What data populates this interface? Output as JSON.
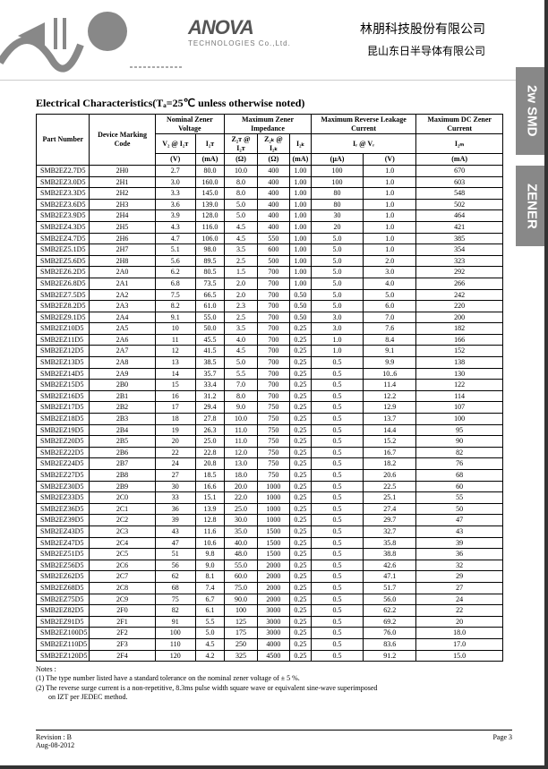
{
  "header": {
    "logo_main": "ANOVA",
    "logo_sub": "TECHNOLOGIES Co.,Ltd.",
    "cjk1": "林朋科技股份有限公司",
    "cjk2": "昆山东日半导体有限公司"
  },
  "side_tabs": [
    "2w SMD",
    "ZENER"
  ],
  "section_title": "Electrical Characteristics(Tₐ=25℃ unless otherwise noted)",
  "columns": {
    "part_number": "Part Number",
    "marking": "Device Marking Code",
    "nom_group": "Nominal Zener Voltage",
    "imp_group": "Maximum Zener Impedance",
    "leak_group": "Maximum Reverse Leakage Current",
    "dc_group": "Maximum DC Zener Current",
    "vz": "V₂ @ I₂ᴛ",
    "izt": "I₂ᴛ",
    "zzt": "Z₂ᴛ @ I₂ᴛ",
    "zzk": "Z₂ₖ @ I₂ₖ",
    "izk": "I₂ₖ",
    "ir": "Iᵣ @ Vᵣ",
    "vr": "",
    "izm": "I₂ₘ",
    "units": [
      "(V)",
      "(mA)",
      "(Ω)",
      "(Ω)",
      "(mA)",
      "(µA)",
      "(V)",
      "(mA)"
    ]
  },
  "rows": [
    {
      "pn": "SMB2EZ2.7D5",
      "mc": "2H0",
      "vz": "2.7",
      "izt": "80.0",
      "zzt": "10.0",
      "zzk": "400",
      "izk": "1.00",
      "ir": "100",
      "vr": "1.0",
      "izm": "670"
    },
    {
      "pn": "SMB2EZ3.0D5",
      "mc": "2H1",
      "vz": "3.0",
      "izt": "160.0",
      "zzt": "8.0",
      "zzk": "400",
      "izk": "1.00",
      "ir": "100",
      "vr": "1.0",
      "izm": "603"
    },
    {
      "pn": "SMB2EZ3.3D5",
      "mc": "2H2",
      "vz": "3.3",
      "izt": "145.0",
      "zzt": "8.0",
      "zzk": "400",
      "izk": "1.00",
      "ir": "80",
      "vr": "1.0",
      "izm": "548"
    },
    {
      "pn": "SMB2EZ3.6D5",
      "mc": "2H3",
      "vz": "3.6",
      "izt": "139.0",
      "zzt": "5.0",
      "zzk": "400",
      "izk": "1.00",
      "ir": "80",
      "vr": "1.0",
      "izm": "502"
    },
    {
      "pn": "SMB2EZ3.9D5",
      "mc": "2H4",
      "vz": "3.9",
      "izt": "128.0",
      "zzt": "5.0",
      "zzk": "400",
      "izk": "1.00",
      "ir": "30",
      "vr": "1.0",
      "izm": "464"
    },
    {
      "pn": "SMB2EZ4.3D5",
      "mc": "2H5",
      "vz": "4.3",
      "izt": "116.0",
      "zzt": "4.5",
      "zzk": "400",
      "izk": "1.00",
      "ir": "20",
      "vr": "1.0",
      "izm": "421"
    },
    {
      "pn": "SMB2EZ4.7D5",
      "mc": "2H6",
      "vz": "4.7",
      "izt": "106.0",
      "zzt": "4.5",
      "zzk": "550",
      "izk": "1.00",
      "ir": "5.0",
      "vr": "1.0",
      "izm": "385"
    },
    {
      "pn": "SMB2EZ5.1D5",
      "mc": "2H7",
      "vz": "5.1",
      "izt": "98.0",
      "zzt": "3.5",
      "zzk": "600",
      "izk": "1.00",
      "ir": "5.0",
      "vr": "1.0",
      "izm": "354"
    },
    {
      "pn": "SMB2EZ5.6D5",
      "mc": "2H8",
      "vz": "5.6",
      "izt": "89.5",
      "zzt": "2.5",
      "zzk": "500",
      "izk": "1.00",
      "ir": "5.0",
      "vr": "2.0",
      "izm": "323"
    },
    {
      "pn": "SMB2EZ6.2D5",
      "mc": "2A0",
      "vz": "6.2",
      "izt": "80.5",
      "zzt": "1.5",
      "zzk": "700",
      "izk": "1.00",
      "ir": "5.0",
      "vr": "3.0",
      "izm": "292"
    },
    {
      "pn": "SMB2EZ6.8D5",
      "mc": "2A1",
      "vz": "6.8",
      "izt": "73.5",
      "zzt": "2.0",
      "zzk": "700",
      "izk": "1.00",
      "ir": "5.0",
      "vr": "4.0",
      "izm": "266"
    },
    {
      "pn": "SMB2EZ7.5D5",
      "mc": "2A2",
      "vz": "7.5",
      "izt": "66.5",
      "zzt": "2.0",
      "zzk": "700",
      "izk": "0.50",
      "ir": "5.0",
      "vr": "5.0",
      "izm": "242"
    },
    {
      "pn": "SMB2EZ8.2D5",
      "mc": "2A3",
      "vz": "8.2",
      "izt": "61.0",
      "zzt": "2.3",
      "zzk": "700",
      "izk": "0.50",
      "ir": "5.0",
      "vr": "6.0",
      "izm": "220"
    },
    {
      "pn": "SMB2EZ9.1D5",
      "mc": "2A4",
      "vz": "9.1",
      "izt": "55.0",
      "zzt": "2.5",
      "zzk": "700",
      "izk": "0.50",
      "ir": "3.0",
      "vr": "7.0",
      "izm": "200"
    },
    {
      "pn": "SMB2EZ10D5",
      "mc": "2A5",
      "vz": "10",
      "izt": "50.0",
      "zzt": "3.5",
      "zzk": "700",
      "izk": "0.25",
      "ir": "3.0",
      "vr": "7.6",
      "izm": "182"
    },
    {
      "pn": "SMB2EZ11D5",
      "mc": "2A6",
      "vz": "11",
      "izt": "45.5",
      "zzt": "4.0",
      "zzk": "700",
      "izk": "0.25",
      "ir": "1.0",
      "vr": "8.4",
      "izm": "166"
    },
    {
      "pn": "SMB2EZ12D5",
      "mc": "2A7",
      "vz": "12",
      "izt": "41.5",
      "zzt": "4.5",
      "zzk": "700",
      "izk": "0.25",
      "ir": "1.0",
      "vr": "9.1",
      "izm": "152"
    },
    {
      "pn": "SMB2EZ13D5",
      "mc": "2A8",
      "vz": "13",
      "izt": "38.5",
      "zzt": "5.0",
      "zzk": "700",
      "izk": "0.25",
      "ir": "0.5",
      "vr": "9.9",
      "izm": "138"
    },
    {
      "pn": "SMB2EZ14D5",
      "mc": "2A9",
      "vz": "14",
      "izt": "35.7",
      "zzt": "5.5",
      "zzk": "700",
      "izk": "0.25",
      "ir": "0.5",
      "vr": "10..6",
      "izm": "130"
    },
    {
      "pn": "SMB2EZ15D5",
      "mc": "2B0",
      "vz": "15",
      "izt": "33.4",
      "zzt": "7.0",
      "zzk": "700",
      "izk": "0.25",
      "ir": "0.5",
      "vr": "11.4",
      "izm": "122"
    },
    {
      "pn": "SMB2EZ16D5",
      "mc": "2B1",
      "vz": "16",
      "izt": "31.2",
      "zzt": "8.0",
      "zzk": "700",
      "izk": "0.25",
      "ir": "0.5",
      "vr": "12.2",
      "izm": "114"
    },
    {
      "pn": "SMB2EZ17D5",
      "mc": "2B2",
      "vz": "17",
      "izt": "29.4",
      "zzt": "9.0",
      "zzk": "750",
      "izk": "0.25",
      "ir": "0.5",
      "vr": "12.9",
      "izm": "107"
    },
    {
      "pn": "SMB2EZ18D5",
      "mc": "2B3",
      "vz": "18",
      "izt": "27.8",
      "zzt": "10.0",
      "zzk": "750",
      "izk": "0.25",
      "ir": "0.5",
      "vr": "13.7",
      "izm": "100"
    },
    {
      "pn": "SMB2EZ19D5",
      "mc": "2B4",
      "vz": "19",
      "izt": "26.3",
      "zzt": "11.0",
      "zzk": "750",
      "izk": "0.25",
      "ir": "0.5",
      "vr": "14.4",
      "izm": "95"
    },
    {
      "pn": "SMB2EZ20D5",
      "mc": "2B5",
      "vz": "20",
      "izt": "25.0",
      "zzt": "11.0",
      "zzk": "750",
      "izk": "0.25",
      "ir": "0.5",
      "vr": "15.2",
      "izm": "90"
    },
    {
      "pn": "SMB2EZ22D5",
      "mc": "2B6",
      "vz": "22",
      "izt": "22.8",
      "zzt": "12.0",
      "zzk": "750",
      "izk": "0.25",
      "ir": "0.5",
      "vr": "16.7",
      "izm": "82"
    },
    {
      "pn": "SMB2EZ24D5",
      "mc": "2B7",
      "vz": "24",
      "izt": "20.8",
      "zzt": "13.0",
      "zzk": "750",
      "izk": "0.25",
      "ir": "0.5",
      "vr": "18.2",
      "izm": "76"
    },
    {
      "pn": "SMB2EZ27D5",
      "mc": "2B8",
      "vz": "27",
      "izt": "18.5",
      "zzt": "18.0",
      "zzk": "750",
      "izk": "0.25",
      "ir": "0.5",
      "vr": "20.6",
      "izm": "68"
    },
    {
      "pn": "SMB2EZ30D5",
      "mc": "2B9",
      "vz": "30",
      "izt": "16.6",
      "zzt": "20.0",
      "zzk": "1000",
      "izk": "0.25",
      "ir": "0.5",
      "vr": "22.5",
      "izm": "60"
    },
    {
      "pn": "SMB2EZ33D5",
      "mc": "2C0",
      "vz": "33",
      "izt": "15.1",
      "zzt": "22.0",
      "zzk": "1000",
      "izk": "0.25",
      "ir": "0.5",
      "vr": "25.1",
      "izm": "55"
    },
    {
      "pn": "SMB2EZ36D5",
      "mc": "2C1",
      "vz": "36",
      "izt": "13.9",
      "zzt": "25.0",
      "zzk": "1000",
      "izk": "0.25",
      "ir": "0.5",
      "vr": "27.4",
      "izm": "50"
    },
    {
      "pn": "SMB2EZ39D5",
      "mc": "2C2",
      "vz": "39",
      "izt": "12.8",
      "zzt": "30.0",
      "zzk": "1000",
      "izk": "0.25",
      "ir": "0.5",
      "vr": "29.7",
      "izm": "47"
    },
    {
      "pn": "SMB2EZ43D5",
      "mc": "2C3",
      "vz": "43",
      "izt": "11.6",
      "zzt": "35.0",
      "zzk": "1500",
      "izk": "0.25",
      "ir": "0.5",
      "vr": "32.7",
      "izm": "43"
    },
    {
      "pn": "SMB2EZ47D5",
      "mc": "2C4",
      "vz": "47",
      "izt": "10.6",
      "zzt": "40.0",
      "zzk": "1500",
      "izk": "0.25",
      "ir": "0.5",
      "vr": "35.8",
      "izm": "39"
    },
    {
      "pn": "SMB2EZ51D5",
      "mc": "2C5",
      "vz": "51",
      "izt": "9.8",
      "zzt": "48.0",
      "zzk": "1500",
      "izk": "0.25",
      "ir": "0.5",
      "vr": "38.8",
      "izm": "36"
    },
    {
      "pn": "SMB2EZ56D5",
      "mc": "2C6",
      "vz": "56",
      "izt": "9.0",
      "zzt": "55.0",
      "zzk": "2000",
      "izk": "0.25",
      "ir": "0.5",
      "vr": "42.6",
      "izm": "32"
    },
    {
      "pn": "SMB2EZ62D5",
      "mc": "2C7",
      "vz": "62",
      "izt": "8.1",
      "zzt": "60.0",
      "zzk": "2000",
      "izk": "0.25",
      "ir": "0.5",
      "vr": "47.1",
      "izm": "29"
    },
    {
      "pn": "SMB2EZ68D5",
      "mc": "2C8",
      "vz": "68",
      "izt": "7.4",
      "zzt": "75.0",
      "zzk": "2000",
      "izk": "0.25",
      "ir": "0.5",
      "vr": "51.7",
      "izm": "27"
    },
    {
      "pn": "SMB2EZ75D5",
      "mc": "2C9",
      "vz": "75",
      "izt": "6.7",
      "zzt": "90.0",
      "zzk": "2000",
      "izk": "0.25",
      "ir": "0.5",
      "vr": "56.0",
      "izm": "24"
    },
    {
      "pn": "SMB2EZ82D5",
      "mc": "2F0",
      "vz": "82",
      "izt": "6.1",
      "zzt": "100",
      "zzk": "3000",
      "izk": "0.25",
      "ir": "0.5",
      "vr": "62.2",
      "izm": "22"
    },
    {
      "pn": "SMB2EZ91D5",
      "mc": "2F1",
      "vz": "91",
      "izt": "5.5",
      "zzt": "125",
      "zzk": "3000",
      "izk": "0.25",
      "ir": "0.5",
      "vr": "69.2",
      "izm": "20"
    },
    {
      "pn": "SMB2EZ100D5",
      "mc": "2F2",
      "vz": "100",
      "izt": "5.0",
      "zzt": "175",
      "zzk": "3000",
      "izk": "0.25",
      "ir": "0.5",
      "vr": "76.0",
      "izm": "18.0"
    },
    {
      "pn": "SMB2EZ110D5",
      "mc": "2F3",
      "vz": "110",
      "izt": "4.5",
      "zzt": "250",
      "zzk": "4000",
      "izk": "0.25",
      "ir": "0.5",
      "vr": "83.6",
      "izm": "17.0"
    },
    {
      "pn": "SMB2EZ120D5",
      "mc": "2F4",
      "vz": "120",
      "izt": "4.2",
      "zzt": "325",
      "zzk": "4500",
      "izk": "0.25",
      "ir": "0.5",
      "vr": "91.2",
      "izm": "15.0"
    }
  ],
  "notes": {
    "heading": "Notes :",
    "n1": "(1) The type number listed have a standard tolerance on the nominal zener voltage of ± 5 %.",
    "n2": "(2) The reverse surge current is a non-repetitive, 8.3ms pulse width square wave or equivalent sine-wave superimposed",
    "n2b": "on IZT per JEDEC method."
  },
  "footer": {
    "rev": "Revision : B",
    "date": "Aug-08-2012",
    "page": "Page 3"
  }
}
